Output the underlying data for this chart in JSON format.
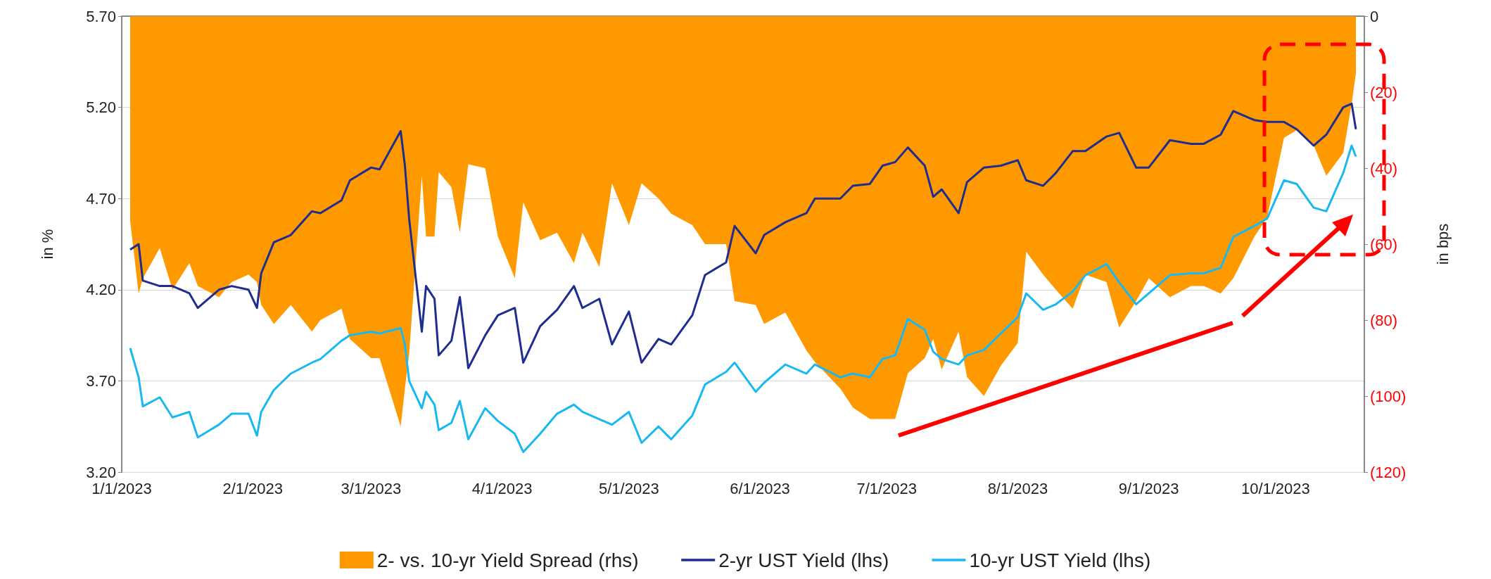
{
  "chart_data": {
    "type": "line",
    "x": [
      "2023-01-03",
      "2023-01-05",
      "2023-01-06",
      "2023-01-10",
      "2023-01-13",
      "2023-01-17",
      "2023-01-19",
      "2023-01-24",
      "2023-01-27",
      "2023-01-31",
      "2023-02-02",
      "2023-02-03",
      "2023-02-06",
      "2023-02-10",
      "2023-02-15",
      "2023-02-17",
      "2023-02-22",
      "2023-02-24",
      "2023-03-01",
      "2023-03-03",
      "2023-03-08",
      "2023-03-09",
      "2023-03-10",
      "2023-03-13",
      "2023-03-14",
      "2023-03-16",
      "2023-03-17",
      "2023-03-20",
      "2023-03-22",
      "2023-03-24",
      "2023-03-28",
      "2023-03-31",
      "2023-04-04",
      "2023-04-06",
      "2023-04-10",
      "2023-04-14",
      "2023-04-18",
      "2023-04-20",
      "2023-04-24",
      "2023-04-27",
      "2023-05-01",
      "2023-05-04",
      "2023-05-08",
      "2023-05-11",
      "2023-05-16",
      "2023-05-19",
      "2023-05-24",
      "2023-05-26",
      "2023-05-31",
      "2023-06-02",
      "2023-06-07",
      "2023-06-12",
      "2023-06-14",
      "2023-06-20",
      "2023-06-23",
      "2023-06-27",
      "2023-06-30",
      "2023-07-03",
      "2023-07-06",
      "2023-07-10",
      "2023-07-12",
      "2023-07-14",
      "2023-07-18",
      "2023-07-20",
      "2023-07-24",
      "2023-07-28",
      "2023-08-01",
      "2023-08-03",
      "2023-08-07",
      "2023-08-10",
      "2023-08-14",
      "2023-08-17",
      "2023-08-22",
      "2023-08-25",
      "2023-08-29",
      "2023-09-01",
      "2023-09-06",
      "2023-09-11",
      "2023-09-14",
      "2023-09-18",
      "2023-09-21",
      "2023-09-26",
      "2023-09-29",
      "2023-10-03",
      "2023-10-06",
      "2023-10-10",
      "2023-10-13",
      "2023-10-17",
      "2023-10-19",
      "2023-10-20"
    ],
    "series": [
      {
        "name": "2- vs. 10-yr Yield Spread (rhs)",
        "type": "area",
        "axis": "y2",
        "color": "#ff9900",
        "values": [
          -54,
          -73,
          -69,
          -61,
          -72,
          -65,
          -71,
          -74,
          -70,
          -68,
          -70,
          -76,
          -81,
          -76,
          -83,
          -80,
          -77,
          -85,
          -90,
          -90,
          -108,
          -98,
          -89,
          -42,
          -58,
          -58,
          -41,
          -45,
          -57,
          -39,
          -40,
          -58,
          -69,
          -49,
          -59,
          -57,
          -65,
          -57,
          -66,
          -44,
          -55,
          -44,
          -48,
          -52,
          -55,
          -60,
          -60,
          -75,
          -76,
          -81,
          -78,
          -88,
          -91,
          -98,
          -103,
          -106,
          -106,
          -106,
          -94,
          -90,
          -85,
          -93,
          -83,
          -95,
          -100,
          -92,
          -86,
          -62,
          -68,
          -72,
          -77,
          -68,
          -70,
          -82,
          -75,
          -69,
          -74,
          -71,
          -71,
          -73,
          -69,
          -58,
          -53,
          -32,
          -30,
          -34,
          -42,
          -36,
          -23,
          -15
        ]
      },
      {
        "name": "2-yr UST Yield (lhs)",
        "color": "#1f2d8f",
        "values": [
          4.42,
          4.45,
          4.25,
          4.22,
          4.22,
          4.18,
          4.1,
          4.2,
          4.22,
          4.2,
          4.1,
          4.29,
          4.46,
          4.5,
          4.63,
          4.62,
          4.69,
          4.8,
          4.87,
          4.86,
          5.07,
          4.88,
          4.59,
          3.97,
          4.22,
          4.15,
          3.84,
          3.92,
          4.16,
          3.77,
          3.95,
          4.06,
          4.1,
          3.8,
          4.0,
          4.09,
          4.22,
          4.1,
          4.15,
          3.9,
          4.08,
          3.8,
          3.93,
          3.9,
          4.06,
          4.28,
          4.35,
          4.55,
          4.4,
          4.5,
          4.57,
          4.62,
          4.7,
          4.7,
          4.77,
          4.78,
          4.88,
          4.9,
          4.98,
          4.88,
          4.71,
          4.75,
          4.62,
          4.79,
          4.87,
          4.88,
          4.91,
          4.8,
          4.77,
          4.84,
          4.96,
          4.96,
          5.04,
          5.06,
          4.87,
          4.87,
          5.02,
          5.0,
          5.0,
          5.05,
          5.18,
          5.13,
          5.12,
          5.12,
          5.08,
          4.99,
          5.05,
          5.2,
          5.22,
          5.08
        ]
      },
      {
        "name": "10-yr UST Yield (lhs)",
        "color": "#1ab8f0",
        "values": [
          3.88,
          3.72,
          3.56,
          3.61,
          3.5,
          3.53,
          3.39,
          3.46,
          3.52,
          3.52,
          3.4,
          3.53,
          3.65,
          3.74,
          3.8,
          3.82,
          3.92,
          3.95,
          3.97,
          3.96,
          3.99,
          3.9,
          3.7,
          3.55,
          3.64,
          3.57,
          3.43,
          3.47,
          3.59,
          3.38,
          3.55,
          3.48,
          3.41,
          3.31,
          3.41,
          3.52,
          3.57,
          3.53,
          3.49,
          3.46,
          3.53,
          3.36,
          3.45,
          3.38,
          3.51,
          3.68,
          3.75,
          3.8,
          3.64,
          3.69,
          3.79,
          3.74,
          3.79,
          3.72,
          3.74,
          3.72,
          3.82,
          3.84,
          4.04,
          3.98,
          3.86,
          3.82,
          3.79,
          3.84,
          3.87,
          3.96,
          4.05,
          4.18,
          4.09,
          4.12,
          4.19,
          4.28,
          4.34,
          4.24,
          4.12,
          4.18,
          4.28,
          4.29,
          4.29,
          4.32,
          4.49,
          4.55,
          4.59,
          4.8,
          4.78,
          4.65,
          4.63,
          4.84,
          4.99,
          4.93
        ]
      }
    ],
    "xlim": [
      "2023-01-01",
      "2023-10-22"
    ],
    "xticks": [
      {
        "value": "2023-01-01",
        "label": "1/1/2023"
      },
      {
        "value": "2023-02-01",
        "label": "2/1/2023"
      },
      {
        "value": "2023-03-01",
        "label": "3/1/2023"
      },
      {
        "value": "2023-04-01",
        "label": "4/1/2023"
      },
      {
        "value": "2023-05-01",
        "label": "5/1/2023"
      },
      {
        "value": "2023-06-01",
        "label": "6/1/2023"
      },
      {
        "value": "2023-07-01",
        "label": "7/1/2023"
      },
      {
        "value": "2023-08-01",
        "label": "8/1/2023"
      },
      {
        "value": "2023-09-01",
        "label": "9/1/2023"
      },
      {
        "value": "2023-10-01",
        "label": "10/1/2023"
      }
    ],
    "ylabel": "in %",
    "ylim": [
      3.2,
      5.7
    ],
    "yticks": [
      {
        "value": 3.2,
        "label": "3.20"
      },
      {
        "value": 3.7,
        "label": "3.70"
      },
      {
        "value": 4.2,
        "label": "4.20"
      },
      {
        "value": 4.7,
        "label": "4.70"
      },
      {
        "value": 5.2,
        "label": "5.20"
      },
      {
        "value": 5.7,
        "label": "5.70"
      }
    ],
    "y2label": "in bps",
    "y2lim": [
      -120,
      0
    ],
    "y2ticks": [
      {
        "value": -120,
        "label": "(120)"
      },
      {
        "value": -100,
        "label": "(100)"
      },
      {
        "value": -80,
        "label": "(80)"
      },
      {
        "value": -60,
        "label": "(60)"
      },
      {
        "value": -40,
        "label": "(40)"
      },
      {
        "value": -20,
        "label": "(20)"
      },
      0
    ],
    "grid": "y",
    "legend": "bottom",
    "marker": "none"
  }
}
